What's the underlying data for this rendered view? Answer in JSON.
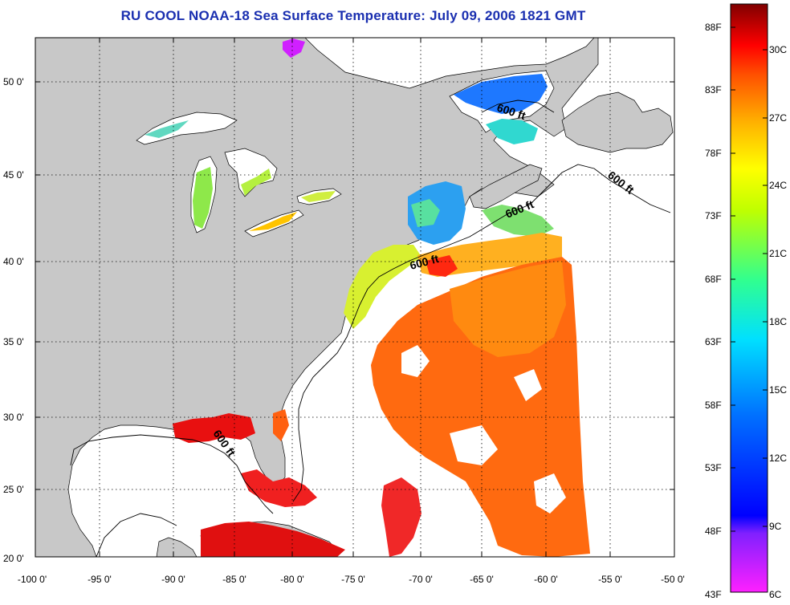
{
  "title": "RU COOL  NOAA-18  Sea Surface Temperature:  July 09, 2006 1821 GMT",
  "x_ticks": [
    "-100 0'",
    "-95 0'",
    "-90 0'",
    "-85 0'",
    "-80 0'",
    "-75 0'",
    "-70 0'",
    "-65 0'",
    "-60 0'",
    "-55 0'",
    "-50 0'"
  ],
  "y_ticks": [
    "50 0'",
    "45 0'",
    "40 0'",
    "35 0'",
    "30 0'",
    "25 0'",
    "20 0'"
  ],
  "contour_labels": [
    "600 ft",
    "600 ft",
    "600 ft",
    "600 ft",
    "600 ft"
  ],
  "colorbar": {
    "fahrenheit": [
      "88F",
      "83F",
      "78F",
      "73F",
      "68F",
      "63F",
      "58F",
      "53F",
      "48F",
      "43F"
    ],
    "celsius": [
      "30C",
      "27C",
      "24C",
      "21C",
      "18C",
      "15C",
      "12C",
      "9C",
      "6C"
    ],
    "colors": [
      "#800000",
      "#ff0000",
      "#ff8000",
      "#ffff00",
      "#80ff00",
      "#00ffff",
      "#0080ff",
      "#0000ff",
      "#8000ff",
      "#ff00ff"
    ]
  },
  "colors": {
    "land": "#c8c8c8",
    "ocean": "#ffffff",
    "title": "#1a2fb0"
  }
}
